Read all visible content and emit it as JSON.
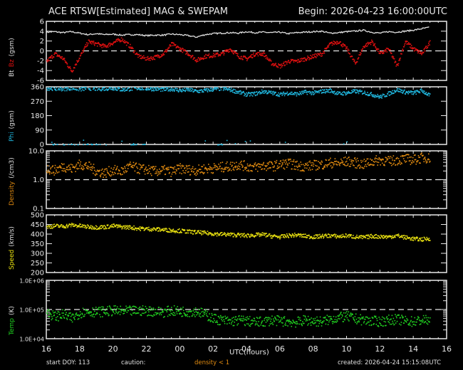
{
  "header": {
    "title": "ACE RTSW[Estimated] MAG & SWEPAM",
    "begin": "Begin: 2026-04-23 16:00:00UTC"
  },
  "footer": {
    "start_doy": "start DOY: 113",
    "caution": "caution:",
    "caution_note": "density < 1",
    "created": "created: 2026-04-24 15:15:08UTC",
    "xlabel": "UTC(hours)"
  },
  "colors": {
    "bt": "#e0e0e0",
    "bz": "#e01010",
    "phi": "#20b8e0",
    "density": "#e08a10",
    "speed": "#e8e010",
    "temp": "#20d020",
    "axis": "#e8e8e8",
    "background": "#000000"
  },
  "chart_data": [
    {
      "type": "scatter",
      "title": "Bt Bz (gsm)",
      "ylabel_parts": [
        {
          "text": "Bt",
          "color": "#e0e0e0"
        },
        {
          "text": "Bz",
          "color": "#e01010"
        },
        {
          "text": "(gsm)",
          "color": "#e0e0e0"
        }
      ],
      "yticks": [
        "6",
        "4",
        "2",
        "0",
        "-2",
        "-4",
        "-6"
      ],
      "ylim": [
        -6,
        6
      ],
      "scale": "linear",
      "reference_line": 0,
      "x": [
        16,
        16.5,
        17,
        17.5,
        18,
        18.5,
        19,
        19.5,
        20,
        20.5,
        21,
        21.5,
        22,
        22.5,
        23,
        23.5,
        24,
        24.5,
        25,
        25.5,
        26,
        26.5,
        27,
        27.5,
        28,
        28.5,
        29,
        29.5,
        30,
        30.5,
        31,
        31.5,
        32,
        32.5,
        33,
        33.5,
        34,
        34.5,
        35,
        35.5,
        36,
        36.5,
        37,
        37.5,
        38,
        38.5,
        39
      ],
      "series": [
        {
          "name": "Bt",
          "values": [
            3.8,
            3.9,
            3.7,
            3.9,
            3.6,
            3.3,
            3.5,
            3.3,
            3.4,
            3.2,
            3.3,
            3.3,
            3.1,
            3.2,
            3.2,
            3.4,
            3.3,
            3.1,
            2.8,
            3.3,
            3.5,
            3.6,
            3.7,
            3.6,
            3.9,
            3.7,
            3.8,
            3.7,
            3.8,
            3.5,
            3.7,
            3.8,
            3.9,
            4.0,
            3.6,
            3.7,
            3.9,
            4.0,
            4.2,
            3.8,
            3.6,
            3.9,
            3.8,
            4.0,
            4.2,
            4.5,
            4.8
          ]
        },
        {
          "name": "Bz",
          "values": [
            -2.0,
            -0.5,
            -1.5,
            -4.0,
            -1.0,
            2.0,
            1.5,
            1.0,
            1.8,
            2.5,
            1.0,
            -1.0,
            -1.5,
            -1.2,
            -0.5,
            1.5,
            0.5,
            -0.5,
            -1.8,
            -1.0,
            -0.8,
            -0.5,
            0.5,
            -1.0,
            -1.5,
            -0.5,
            -0.5,
            -2.5,
            -3.0,
            -2.0,
            -2.0,
            -1.5,
            -1.0,
            -0.5,
            1.5,
            2.0,
            0.5,
            -2.5,
            1.0,
            2.0,
            -0.5,
            0.5,
            -3.0,
            2.0,
            0.5,
            -0.5,
            2.0
          ]
        }
      ]
    },
    {
      "type": "scatter",
      "title": "Phi (gsm)",
      "ylabel_parts": [
        {
          "text": "Phi",
          "color": "#20b8e0"
        },
        {
          "text": "(gsm)",
          "color": "#e0e0e0"
        }
      ],
      "yticks": [
        "360",
        "270",
        "180",
        "90",
        "0"
      ],
      "ylim": [
        0,
        360
      ],
      "scale": "linear",
      "x": [
        16,
        16.5,
        17,
        17.5,
        18,
        18.5,
        19,
        19.5,
        20,
        20.5,
        21,
        21.5,
        22,
        22.5,
        23,
        23.5,
        24,
        24.5,
        25,
        25.5,
        26,
        26.5,
        27,
        27.5,
        28,
        28.5,
        29,
        29.5,
        30,
        30.5,
        31,
        31.5,
        32,
        32.5,
        33,
        33.5,
        34,
        34.5,
        35,
        35.5,
        36,
        36.5,
        37,
        37.5,
        38,
        38.5,
        39
      ],
      "series": [
        {
          "name": "Phi",
          "values": [
            355,
            352,
            350,
            355,
            348,
            355,
            350,
            352,
            355,
            345,
            350,
            355,
            352,
            350,
            345,
            350,
            340,
            345,
            335,
            340,
            348,
            352,
            345,
            330,
            315,
            320,
            335,
            325,
            315,
            325,
            318,
            330,
            325,
            335,
            340,
            320,
            325,
            335,
            328,
            315,
            300,
            320,
            345,
            330,
            325,
            340,
            305
          ]
        }
      ]
    },
    {
      "type": "scatter",
      "title": "Density (/cm3)",
      "ylabel_parts": [
        {
          "text": "Density",
          "color": "#e08a10"
        },
        {
          "text": "(/cm3)",
          "color": "#e0e0e0"
        }
      ],
      "yticks": [
        "10.0",
        "1.0",
        "0.1"
      ],
      "ylim": [
        0.1,
        10
      ],
      "scale": "log",
      "reference_line": 1.0,
      "x": [
        16,
        16.5,
        17,
        17.5,
        18,
        18.5,
        19,
        19.5,
        20,
        20.5,
        21,
        21.5,
        22,
        22.5,
        23,
        23.5,
        24,
        24.5,
        25,
        25.5,
        26,
        26.5,
        27,
        27.5,
        28,
        28.5,
        29,
        29.5,
        30,
        30.5,
        31,
        31.5,
        32,
        32.5,
        33,
        33.5,
        34,
        34.5,
        35,
        35.5,
        36,
        36.5,
        37,
        37.5,
        38,
        38.5,
        39
      ],
      "series": [
        {
          "name": "Density",
          "values": [
            2.5,
            2.2,
            3.0,
            2.5,
            3.5,
            3.0,
            2.0,
            1.8,
            2.2,
            2.0,
            3.0,
            2.5,
            2.3,
            2.0,
            2.2,
            2.0,
            2.5,
            2.3,
            2.2,
            2.5,
            2.6,
            2.8,
            3.0,
            3.5,
            3.0,
            2.8,
            3.2,
            3.0,
            3.5,
            3.8,
            3.2,
            3.0,
            3.3,
            3.5,
            4.0,
            3.8,
            4.5,
            4.0,
            3.5,
            4.5,
            5.0,
            4.5,
            5.0,
            5.5,
            5.0,
            6.0,
            5.8
          ]
        }
      ]
    },
    {
      "type": "scatter",
      "title": "Speed (km/s)",
      "ylabel_parts": [
        {
          "text": "Speed",
          "color": "#e8e010"
        },
        {
          "text": "(km/s)",
          "color": "#e0e0e0"
        }
      ],
      "yticks": [
        "500",
        "450",
        "400",
        "350",
        "300",
        "250",
        "200"
      ],
      "ylim": [
        200,
        500
      ],
      "scale": "linear",
      "x": [
        16,
        16.5,
        17,
        17.5,
        18,
        18.5,
        19,
        19.5,
        20,
        20.5,
        21,
        21.5,
        22,
        22.5,
        23,
        23.5,
        24,
        24.5,
        25,
        25.5,
        26,
        26.5,
        27,
        27.5,
        28,
        28.5,
        29,
        29.5,
        30,
        30.5,
        31,
        31.5,
        32,
        32.5,
        33,
        33.5,
        34,
        34.5,
        35,
        35.5,
        36,
        36.5,
        37,
        37.5,
        38,
        38.5,
        39
      ],
      "series": [
        {
          "name": "Speed",
          "values": [
            440,
            445,
            443,
            450,
            445,
            440,
            438,
            440,
            445,
            440,
            438,
            432,
            430,
            428,
            425,
            422,
            420,
            415,
            412,
            408,
            405,
            402,
            400,
            398,
            395,
            398,
            400,
            392,
            388,
            395,
            398,
            392,
            388,
            392,
            395,
            390,
            395,
            388,
            385,
            392,
            390,
            388,
            395,
            385,
            378,
            375,
            380
          ]
        }
      ]
    },
    {
      "type": "scatter",
      "title": "Temp (K)",
      "ylabel_parts": [
        {
          "text": "Temp",
          "color": "#20d020"
        },
        {
          "text": "(K)",
          "color": "#e0e0e0"
        }
      ],
      "yticks": [
        "1.0E+06",
        "1.0E+05",
        "1.0E+04"
      ],
      "ylim": [
        10000,
        1000000
      ],
      "scale": "log",
      "reference_line": 100000,
      "x": [
        16,
        16.5,
        17,
        17.5,
        18,
        18.5,
        19,
        19.5,
        20,
        20.5,
        21,
        21.5,
        22,
        22.5,
        23,
        23.5,
        24,
        24.5,
        25,
        25.5,
        26,
        26.5,
        27,
        27.5,
        28,
        28.5,
        29,
        29.5,
        30,
        30.5,
        31,
        31.5,
        32,
        32.5,
        33,
        33.5,
        34,
        34.5,
        35,
        35.5,
        36,
        36.5,
        37,
        37.5,
        38,
        38.5,
        39
      ],
      "series": [
        {
          "name": "Temp",
          "values": [
            80000,
            60000,
            70000,
            50000,
            80000,
            90000,
            85000,
            90000,
            95000,
            90000,
            92000,
            95000,
            95000,
            90000,
            85000,
            95000,
            90000,
            88000,
            90000,
            70000,
            50000,
            45000,
            40000,
            45000,
            42000,
            38000,
            40000,
            45000,
            42000,
            40000,
            38000,
            45000,
            42000,
            40000,
            48000,
            55000,
            60000,
            50000,
            45000,
            42000,
            40000,
            45000,
            48000,
            42000,
            40000,
            45000,
            44000
          ]
        }
      ]
    }
  ],
  "xaxis": {
    "ticks": [
      "16",
      "18",
      "20",
      "22",
      "00",
      "02",
      "04",
      "06",
      "08",
      "10",
      "12",
      "14",
      "16"
    ],
    "range_hours": [
      16,
      40
    ]
  }
}
